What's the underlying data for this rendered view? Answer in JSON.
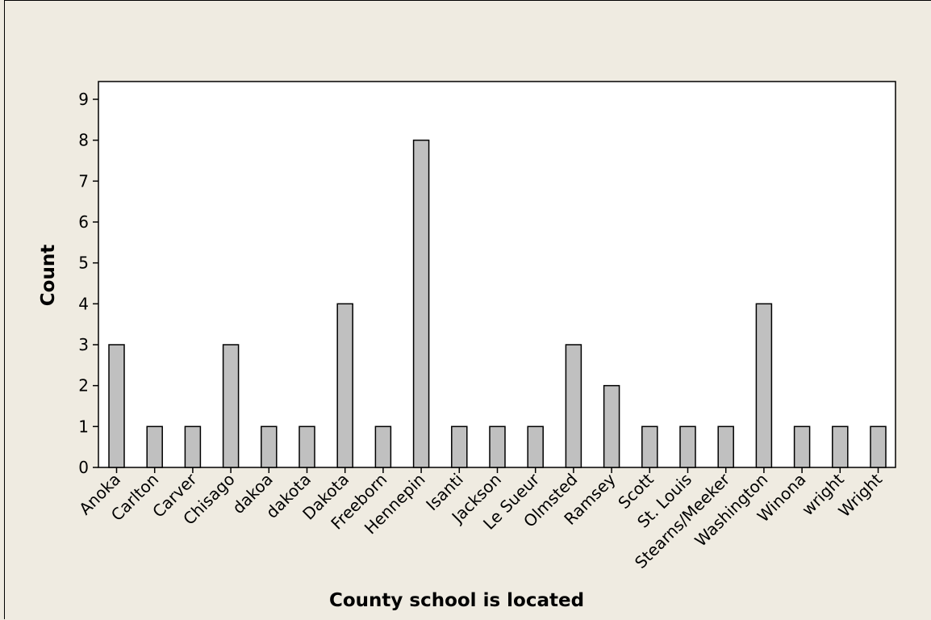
{
  "chart_data": {
    "type": "bar",
    "title": "",
    "xlabel": "County school is located",
    "ylabel": "Count",
    "categories": [
      "Anoka",
      "Carlton",
      "Carver",
      "Chisago",
      "dakoa",
      "dakota",
      "Dakota",
      "Freeborn",
      "Hennepin",
      "Isanti",
      "Jackson",
      "Le Sueur",
      "Olmsted",
      "Ramsey",
      "Scott",
      "St. Louis",
      "Stearns/Meeker",
      "Washington",
      "Winona",
      "wright",
      "Wright"
    ],
    "values": [
      3,
      1,
      1,
      3,
      1,
      1,
      4,
      1,
      8,
      1,
      1,
      1,
      3,
      2,
      1,
      1,
      1,
      4,
      1,
      1,
      1
    ],
    "ylim": [
      0,
      9
    ],
    "yticks": [
      0,
      1,
      2,
      3,
      4,
      5,
      6,
      7,
      8,
      9
    ],
    "grid": false,
    "legend": "none",
    "colors": {
      "bar_fill": "#c0c0c0",
      "bar_stroke": "#000000",
      "plot_bg": "#ffffff",
      "page_bg": "#efebe1"
    }
  }
}
